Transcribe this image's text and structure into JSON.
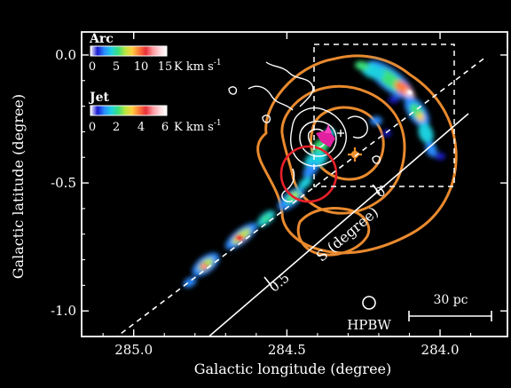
{
  "chart_data": {
    "type": "heatmap",
    "title": "",
    "xlabel": "Galactic longitude (degree)",
    "ylabel": "Galactic latitude (degree)",
    "xlim": [
      285.17,
      283.78
    ],
    "ylim": [
      -1.1,
      0.09
    ],
    "x_reversed": true,
    "x_ticks": [
      285.0,
      284.5,
      284.0
    ],
    "x_tick_labels": [
      "285.0",
      "284.5",
      "284.0"
    ],
    "y_ticks": [
      0.0,
      -0.5,
      -1.0
    ],
    "y_tick_labels": [
      "0.0",
      "-0.5",
      "-1.0"
    ],
    "background": "#000000",
    "legends": [
      {
        "name": "Arc",
        "tick_labels": [
          "0",
          "5",
          "10",
          "15"
        ],
        "unit": "K km s",
        "unit_superscript": "-1",
        "range": [
          0,
          15
        ]
      },
      {
        "name": "Jet",
        "tick_labels": [
          "0",
          "2",
          "4",
          "6"
        ],
        "unit": "K km s",
        "unit_superscript": "-1",
        "range": [
          0,
          6
        ]
      }
    ],
    "colormap": [
      "#1a1ad0",
      "#2a8cff",
      "#1fd0e0",
      "#3ae07a",
      "#b8e640",
      "#ffd040",
      "#ff7a3a",
      "#e8303a",
      "#ff9aa0",
      "#ffd8dc",
      "#ffffff"
    ],
    "annotations": {
      "s_axis_label": "S (degree)",
      "s_axis_ticks": [
        "0",
        "0.5"
      ],
      "hpbw_label": "HPBW",
      "scale_bar_label": "30 pc"
    },
    "colors": {
      "orange_contours": "#e98a2e",
      "white_contours": "#ffffff",
      "red_circle": "#e8202a",
      "magenta_marker": "#e020a0",
      "orange_marker": "#f0902a",
      "frame": "#ffffff"
    }
  }
}
